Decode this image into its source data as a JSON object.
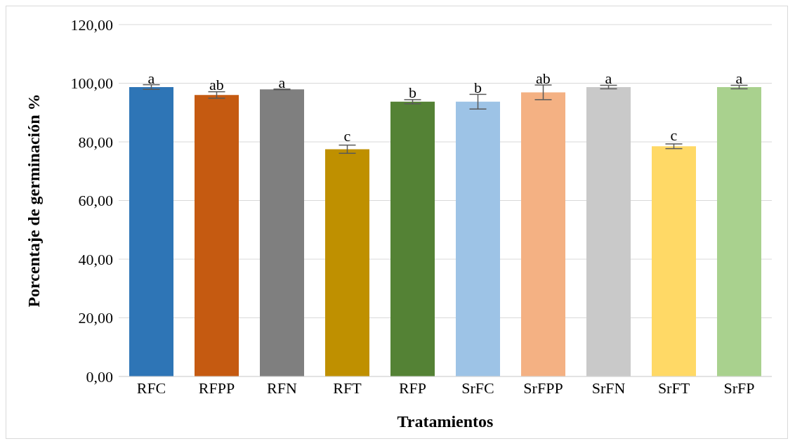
{
  "chart_data": {
    "type": "bar",
    "xlabel": "Tratamientos",
    "ylabel": "Porcentaje de germinación %",
    "categories": [
      "RFC",
      "RFPP",
      "RFN",
      "RFT",
      "RFP",
      "SrFC",
      "SrFPP",
      "SrFN",
      "SrFT",
      "SrFP"
    ],
    "values": [
      98.7,
      96.0,
      97.9,
      77.5,
      93.7,
      93.7,
      96.9,
      98.7,
      78.5,
      98.7
    ],
    "errors": [
      0.8,
      1.1,
      0.1,
      1.4,
      0.7,
      2.5,
      2.5,
      0.6,
      0.8,
      0.6
    ],
    "colors": [
      "#2e75b6",
      "#c55a11",
      "#7f7f7f",
      "#bf9000",
      "#548235",
      "#9dc3e6",
      "#f4b183",
      "#c9c9c9",
      "#ffd966",
      "#a9d18e"
    ],
    "ylim": [
      0,
      120
    ],
    "yticks": [
      {
        "value": 0,
        "label": "0,00"
      },
      {
        "value": 20,
        "label": "20,00"
      },
      {
        "value": 40,
        "label": "40,00"
      },
      {
        "value": 60,
        "label": "60,00"
      },
      {
        "value": 80,
        "label": "80,00"
      },
      {
        "value": 100,
        "label": "100,00"
      },
      {
        "value": 120,
        "label": "120,00"
      }
    ],
    "grid": "y",
    "legend": false,
    "annotations": [
      {
        "text": "a",
        "x": "RFC",
        "y": 99.5
      },
      {
        "text": "ab",
        "x": "RFPP",
        "y": 97.1
      },
      {
        "text": "a",
        "x": "RFN",
        "y": 98.0
      },
      {
        "text": "c",
        "x": "RFT",
        "y": 78.9
      },
      {
        "text": "b",
        "x": "RFP",
        "y": 94.4
      },
      {
        "text": "b",
        "x": "SrFC",
        "y": 96.2
      },
      {
        "text": "ab",
        "x": "SrFPP",
        "y": 99.4
      },
      {
        "text": "a",
        "x": "SrFN",
        "y": 99.3
      },
      {
        "text": "c",
        "x": "SrFT",
        "y": 79.3
      },
      {
        "text": "a",
        "x": "SrFP",
        "y": 99.3
      }
    ]
  }
}
